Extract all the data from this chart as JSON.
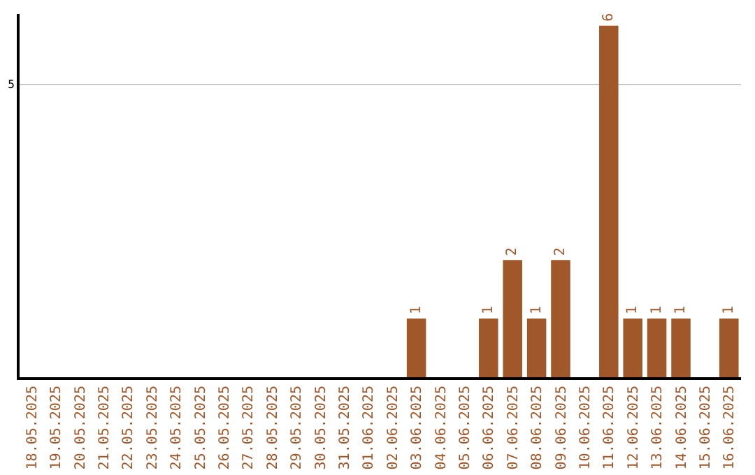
{
  "chart_data": {
    "type": "bar",
    "categories": [
      "18.05.2025",
      "19.05.2025",
      "20.05.2025",
      "21.05.2025",
      "22.05.2025",
      "23.05.2025",
      "24.05.2025",
      "25.05.2025",
      "26.05.2025",
      "27.05.2025",
      "28.05.2025",
      "29.05.2025",
      "30.05.2025",
      "31.05.2025",
      "01.06.2025",
      "02.06.2025",
      "03.06.2025",
      "04.06.2025",
      "05.06.2025",
      "06.06.2025",
      "07.06.2025",
      "08.06.2025",
      "09.06.2025",
      "10.06.2025",
      "11.06.2025",
      "12.06.2025",
      "13.06.2025",
      "14.06.2025",
      "15.06.2025",
      "16.06.2025"
    ],
    "values": [
      null,
      null,
      null,
      null,
      null,
      null,
      null,
      null,
      null,
      null,
      null,
      null,
      null,
      null,
      null,
      null,
      1,
      null,
      null,
      1,
      2,
      1,
      2,
      null,
      6,
      1,
      1,
      1,
      null,
      1
    ],
    "value_labels": [
      null,
      null,
      null,
      null,
      null,
      null,
      null,
      null,
      null,
      null,
      null,
      null,
      null,
      null,
      null,
      null,
      "1",
      null,
      null,
      "1",
      "2",
      "1",
      "2",
      null,
      "6",
      "1",
      "1",
      "1",
      null,
      "1"
    ],
    "color": "#a0582a",
    "ylim": [
      0,
      6.2
    ],
    "yticks": [
      5
    ],
    "grid": "y"
  }
}
